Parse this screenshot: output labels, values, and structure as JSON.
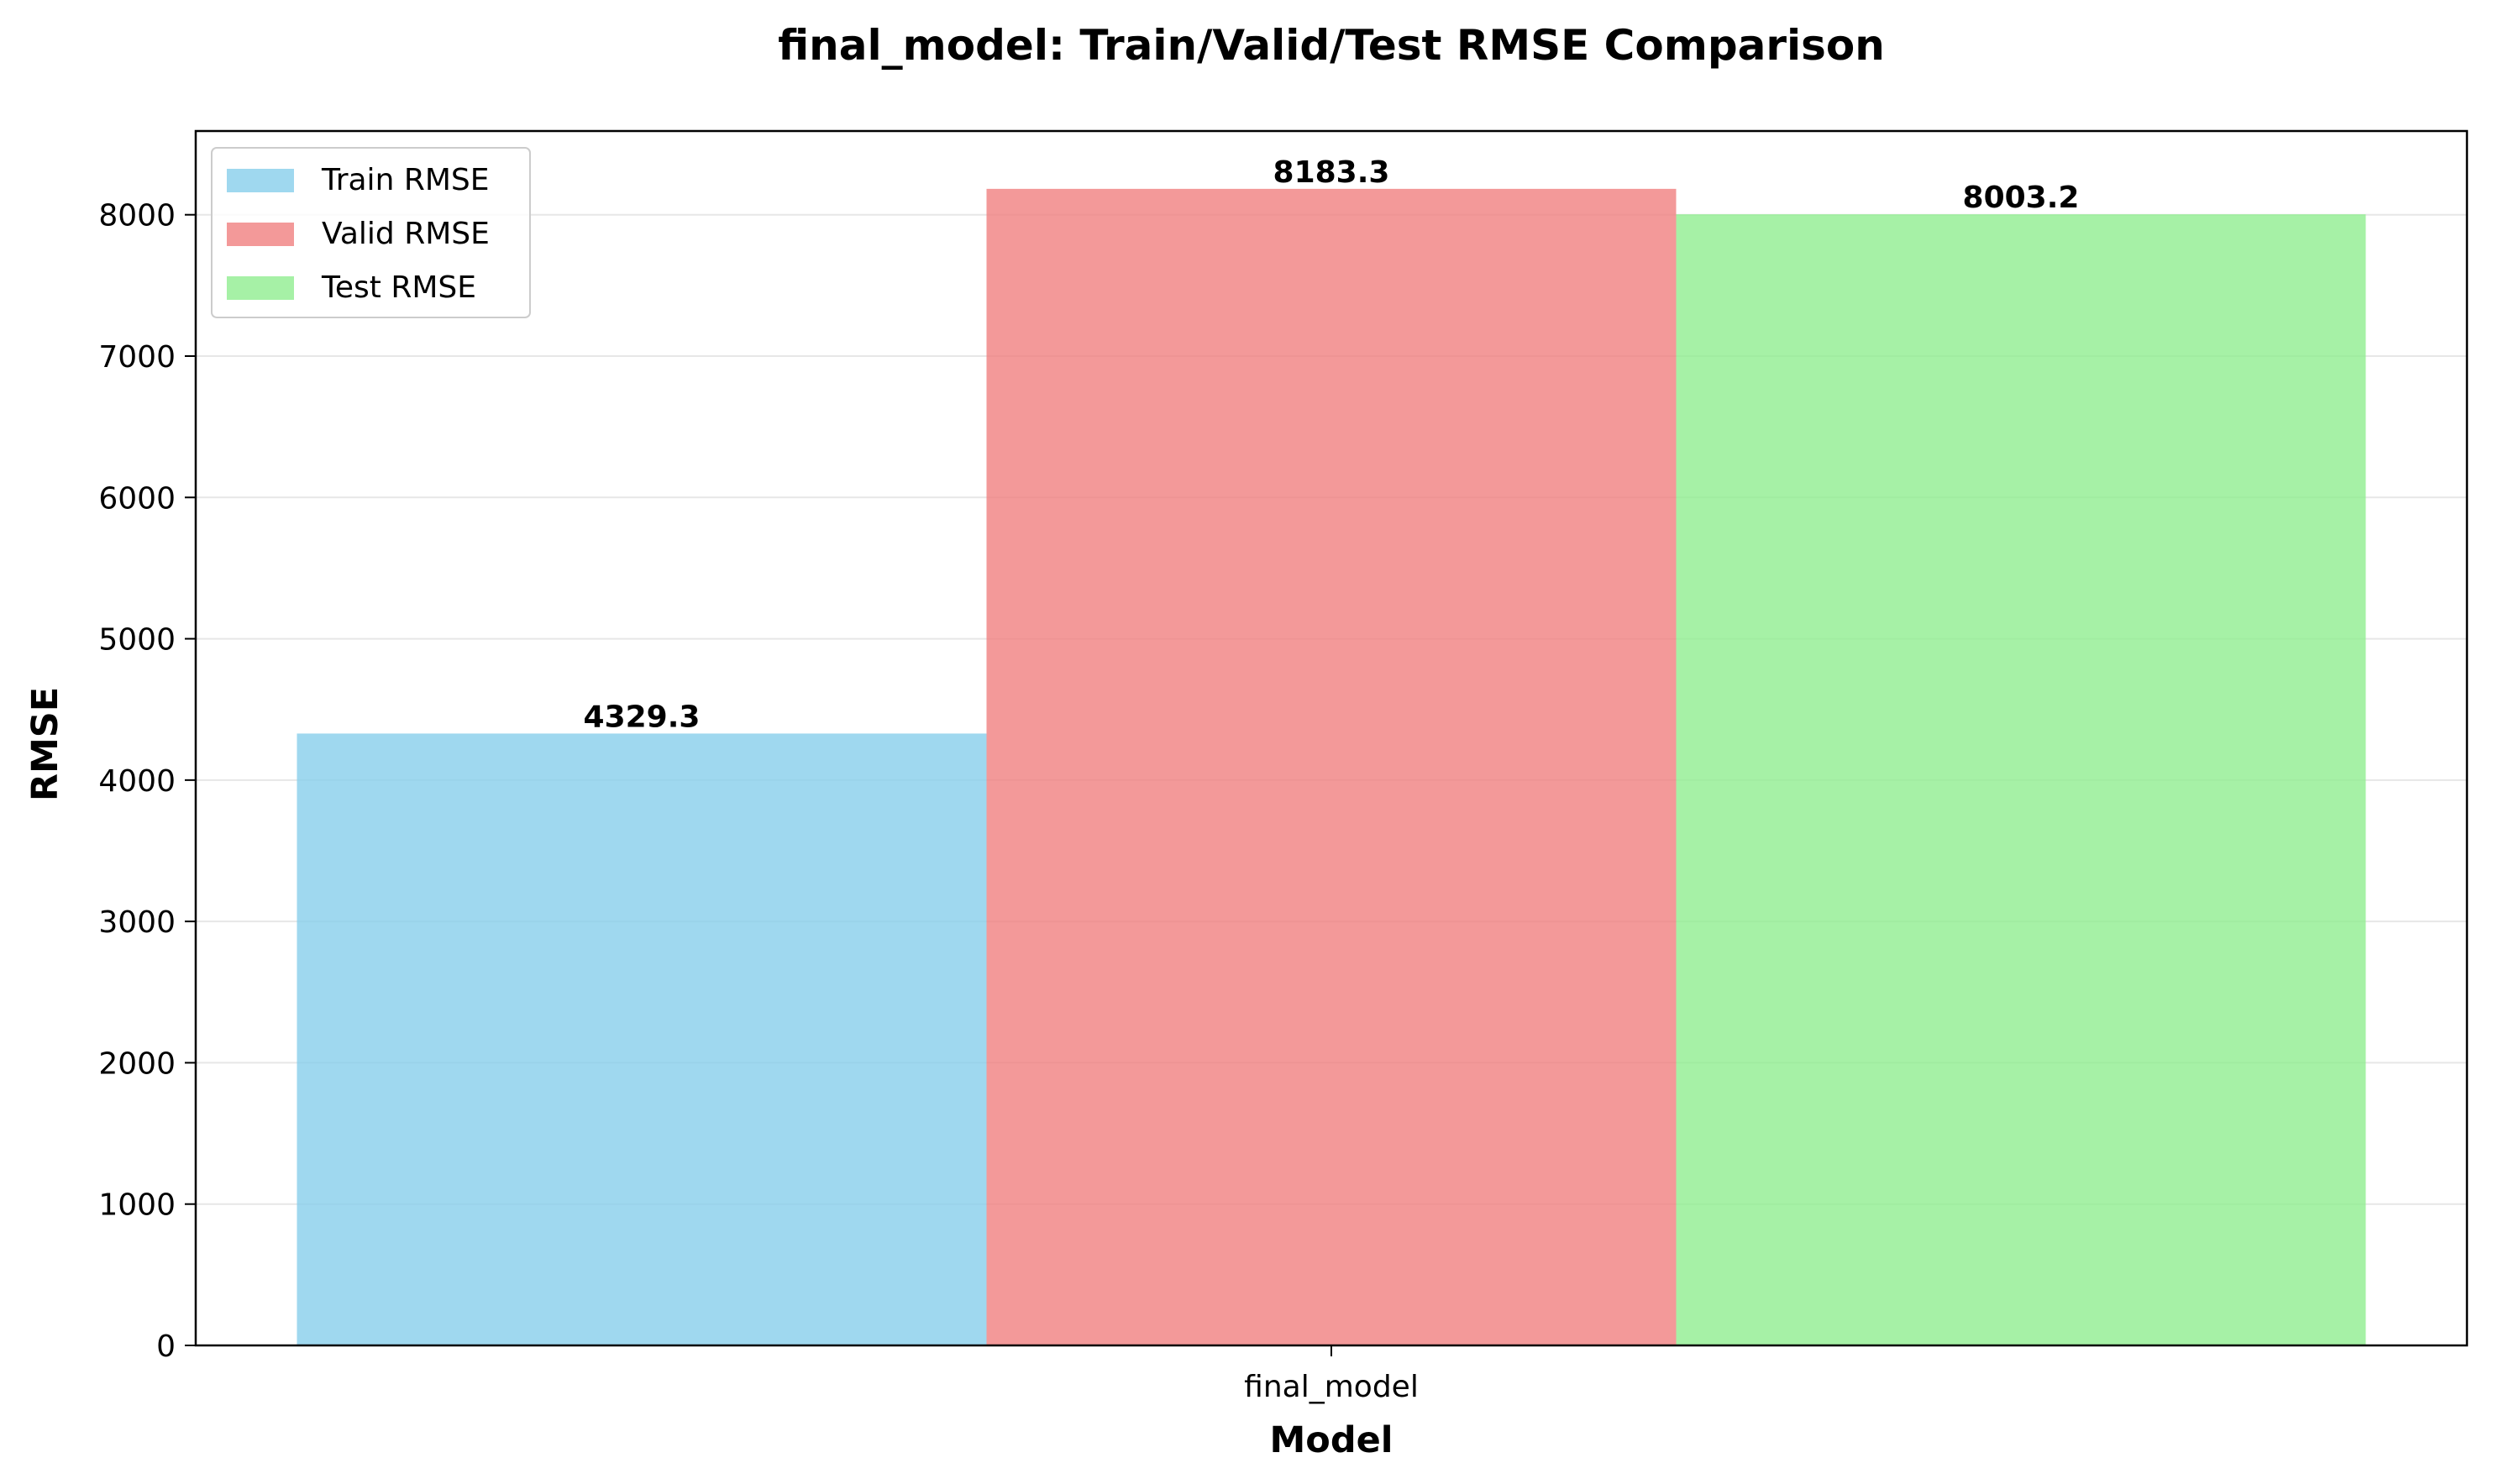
{
  "chart_data": {
    "type": "bar",
    "title": "final_model: Train/Valid/Test RMSE Comparison",
    "xlabel": "Model",
    "ylabel": "RMSE",
    "categories": [
      "final_model"
    ],
    "series": [
      {
        "name": "Train RMSE",
        "values": [
          4329.3
        ],
        "color": "#87ceeb",
        "value_label": "4329.3"
      },
      {
        "name": "Valid RMSE",
        "values": [
          8183.3
        ],
        "color": "#f08080",
        "value_label": "8183.3"
      },
      {
        "name": "Test RMSE",
        "values": [
          8003.2
        ],
        "color": "#90ee90",
        "value_label": "8003.2"
      }
    ],
    "bar_alpha": 0.8,
    "ylim": [
      0,
      8592.5
    ],
    "yticks": [
      0,
      1000,
      2000,
      3000,
      4000,
      5000,
      6000,
      7000,
      8000
    ],
    "ytick_labels": [
      "0",
      "1000",
      "2000",
      "3000",
      "4000",
      "5000",
      "6000",
      "7000",
      "8000"
    ],
    "grid": "y",
    "legend_position": "upper-left"
  }
}
